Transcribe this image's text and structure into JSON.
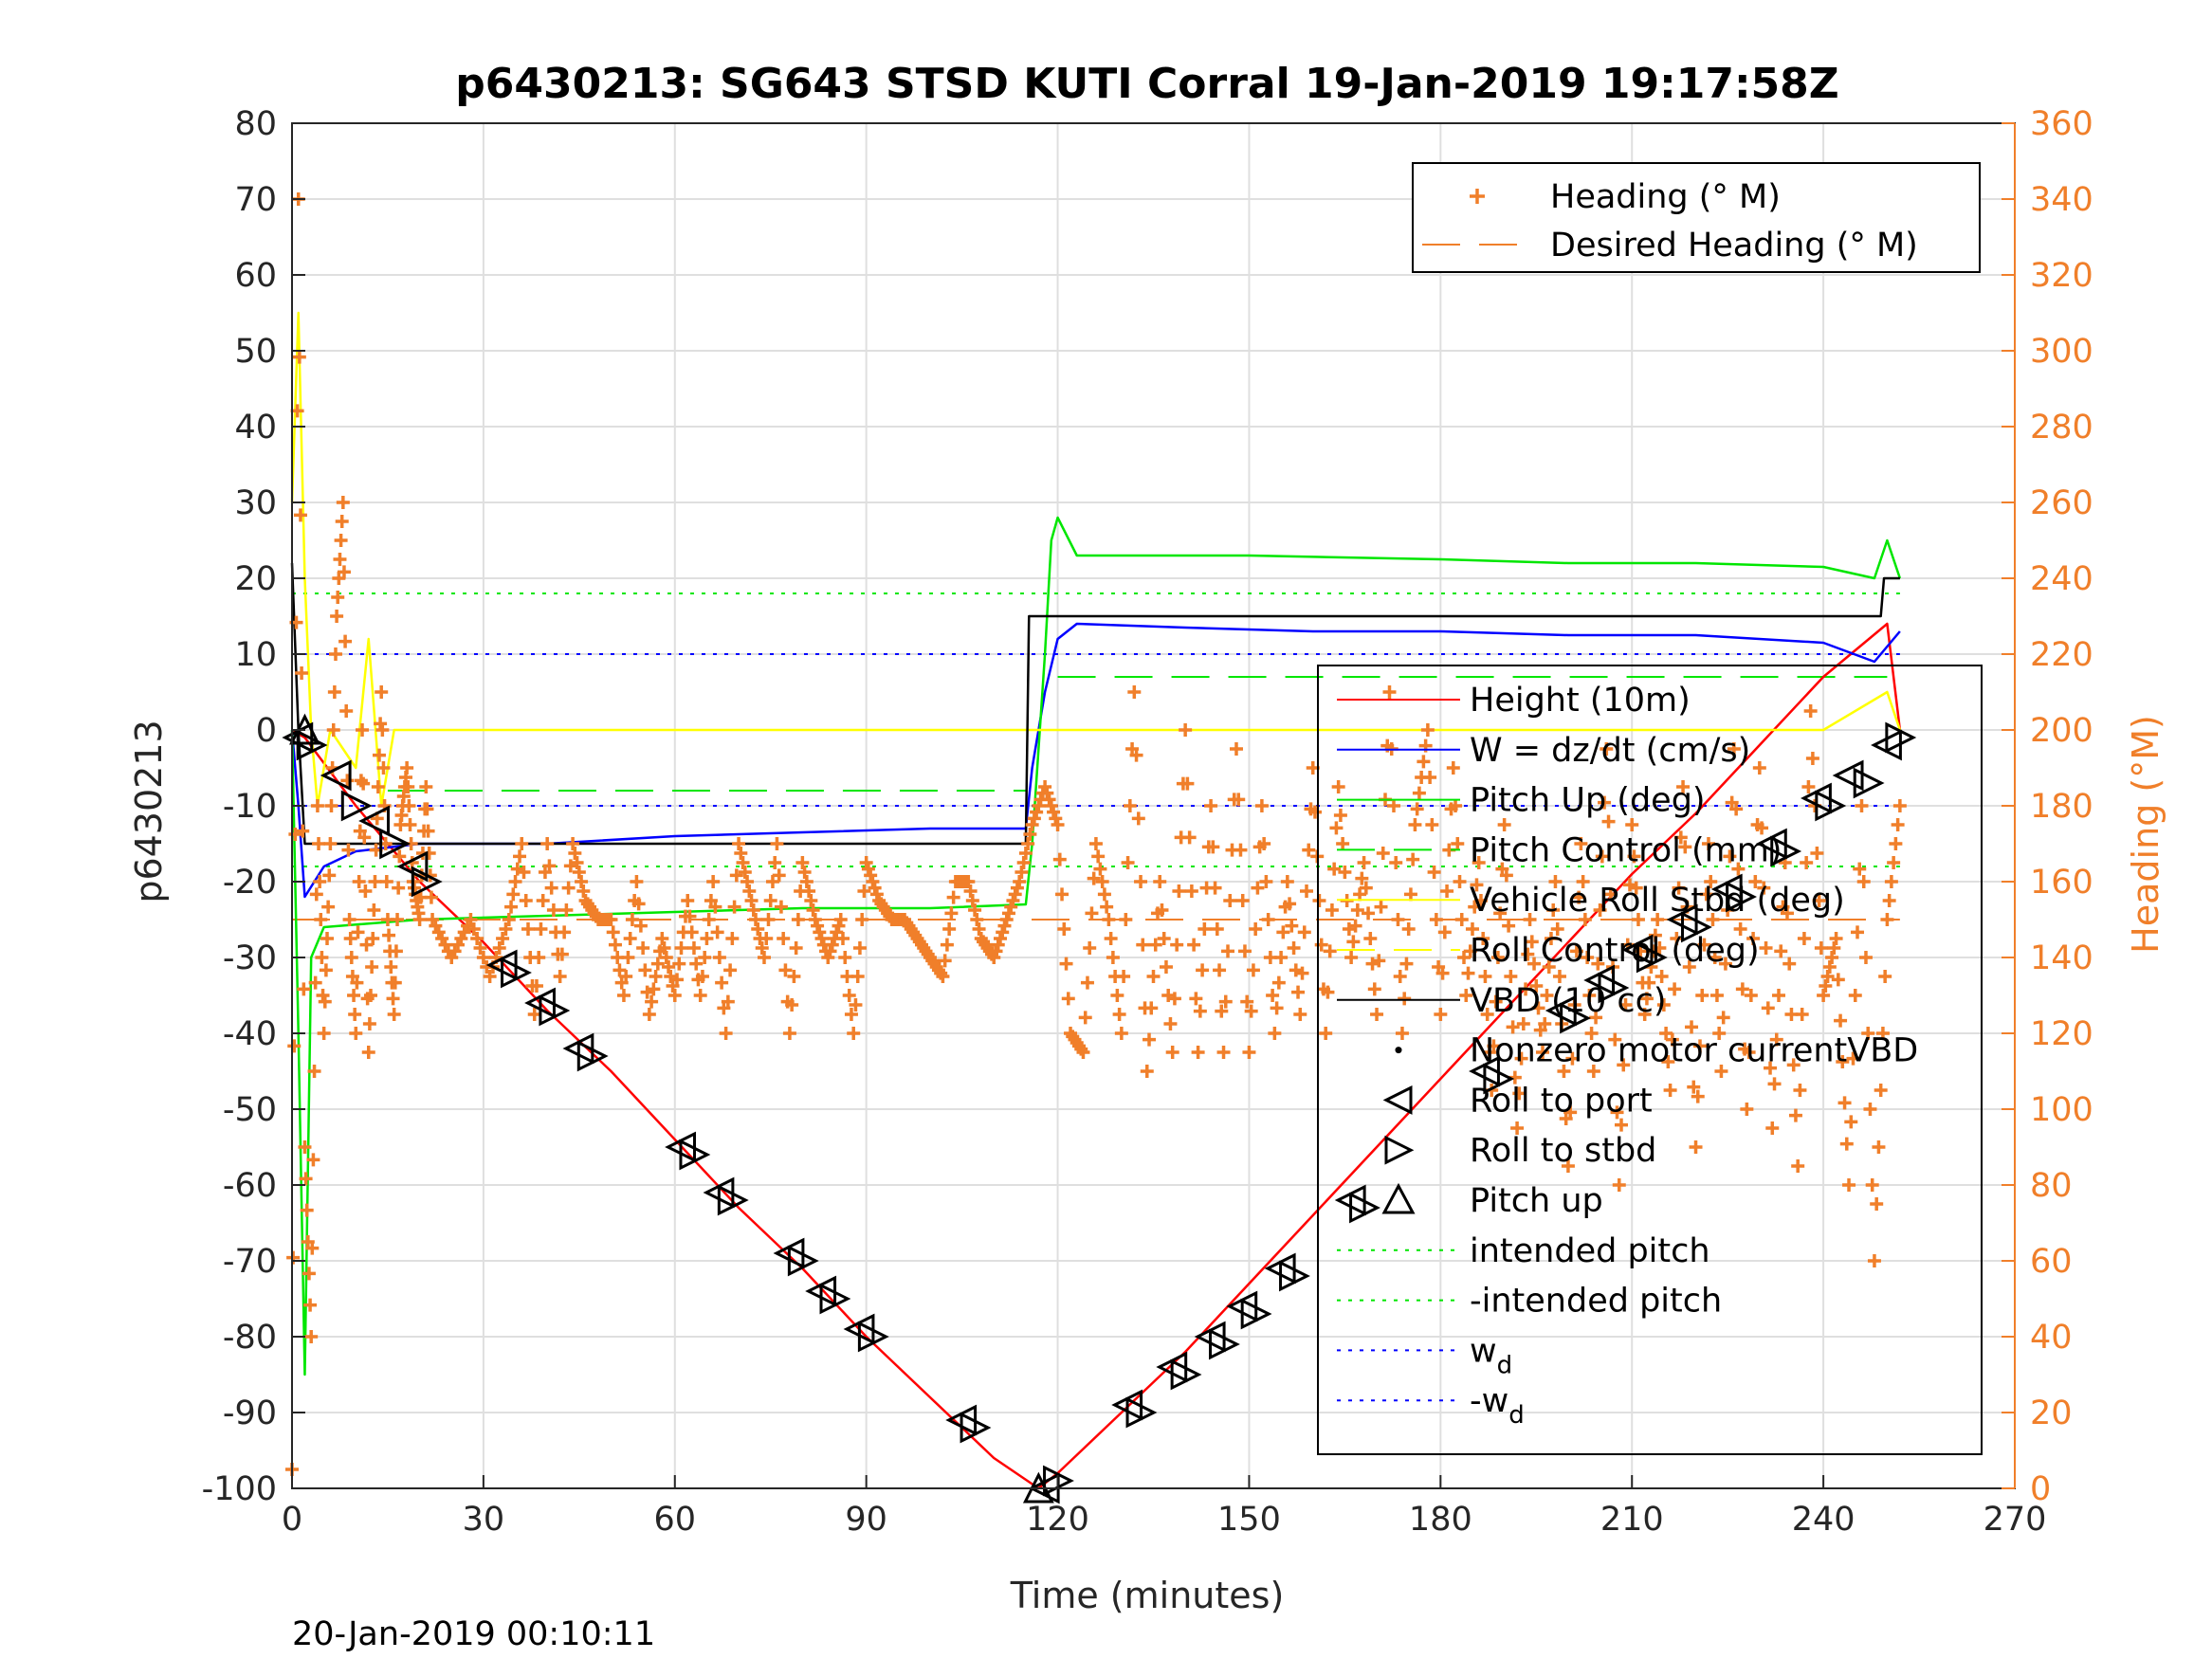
{
  "chart_data": {
    "type": "line",
    "title": "p6430213: SG643 STSD KUTI Corral 19-Jan-2019 19:17:58Z",
    "xlabel": "Time (minutes)",
    "ylabel": "p6430213",
    "ylabel_right": "Heading (°M)",
    "footer": "20-Jan-2019 00:10:11",
    "xlim": [
      0,
      270
    ],
    "ylim": [
      -100,
      80
    ],
    "ylim_right": [
      0,
      360
    ],
    "x_ticks": [
      "0",
      "30",
      "60",
      "90",
      "120",
      "150",
      "180",
      "210",
      "240",
      "270"
    ],
    "y_ticks": [
      "80",
      "70",
      "60",
      "50",
      "40",
      "30",
      "20",
      "10",
      "0",
      "-10",
      "-20",
      "-30",
      "-40",
      "-50",
      "-60",
      "-70",
      "-80",
      "-90",
      "-100"
    ],
    "y_ticks_right": [
      "360",
      "340",
      "320",
      "300",
      "280",
      "260",
      "240",
      "220",
      "200",
      "180",
      "160",
      "140",
      "120",
      "100",
      "80",
      "60",
      "40",
      "20",
      "0"
    ],
    "grid": true,
    "colors": {
      "height": "#ff0000",
      "w": "#0000ff",
      "pitch": "#00e600",
      "roll": "#ffff00",
      "vbd": "#000000",
      "heading": "#f07f2a",
      "marker": "#000000"
    },
    "legend_heading": [
      {
        "label": "Heading (° M)",
        "style": "plus",
        "color": "#f07f2a"
      },
      {
        "label": "Desired Heading (° M)",
        "style": "dash",
        "color": "#f07f2a"
      }
    ],
    "legend_main": [
      {
        "label": "Height (10m)",
        "style": "line",
        "color": "#ff0000"
      },
      {
        "label": "W = dz/dt (cm/s)",
        "style": "line",
        "color": "#0000ff"
      },
      {
        "label": "Pitch Up (deg)",
        "style": "line",
        "color": "#00e600"
      },
      {
        "label": "Pitch Control (mm)",
        "style": "dash",
        "color": "#00e600"
      },
      {
        "label": "Vehicle Roll Stbd (deg)",
        "style": "line",
        "color": "#ffff00"
      },
      {
        "label": "Roll Control (deg)",
        "style": "dash",
        "color": "#ffff00"
      },
      {
        "label": "VBD (10 cc)",
        "style": "line",
        "color": "#000000"
      },
      {
        "label": "Nonzero motor currentVBD",
        "style": "dot",
        "color": "#000000"
      },
      {
        "label": "Roll to port",
        "style": "tri-left",
        "color": "#000000"
      },
      {
        "label": "Roll to stbd",
        "style": "tri-right",
        "color": "#000000"
      },
      {
        "label": "Pitch up",
        "style": "tri-up",
        "color": "#000000"
      },
      {
        "label": "intended pitch",
        "style": "dot-line",
        "color": "#00e600"
      },
      {
        "label": "-intended pitch",
        "style": "dot-line",
        "color": "#00e600"
      },
      {
        "label": "w",
        "sub": "d",
        "style": "dot-line",
        "color": "#0000ff"
      },
      {
        "label": "-w",
        "sub": "d",
        "style": "dot-line",
        "color": "#0000ff"
      }
    ],
    "series": [
      {
        "name": "Height (10m)",
        "color": "#ff0000",
        "x": [
          0,
          2,
          10,
          20,
          30,
          40,
          50,
          60,
          70,
          80,
          90,
          100,
          110,
          117,
          120,
          130,
          140,
          150,
          160,
          170,
          180,
          190,
          200,
          210,
          220,
          230,
          240,
          250,
          252
        ],
        "y": [
          0,
          -1,
          -10,
          -20,
          -28,
          -37,
          -45,
          -54,
          -63,
          -71,
          -80,
          -88,
          -96,
          -100,
          -98,
          -90,
          -82,
          -73,
          -64,
          -55,
          -46,
          -37,
          -28,
          -19,
          -11,
          -2,
          7,
          14,
          0
        ]
      },
      {
        "name": "W = dz/dt (cm/s)",
        "color": "#0000ff",
        "x": [
          0,
          1,
          2,
          5,
          10,
          20,
          40,
          60,
          80,
          100,
          115,
          116,
          118,
          120,
          123,
          140,
          160,
          180,
          200,
          220,
          240,
          248,
          252
        ],
        "y": [
          0,
          -10,
          -22,
          -18,
          -16,
          -15,
          -15,
          -14,
          -13.5,
          -13,
          -13,
          -5,
          5,
          12,
          14,
          13.5,
          13,
          13,
          12.5,
          12.5,
          11.5,
          9,
          13
        ]
      },
      {
        "name": "Pitch Up (deg)",
        "color": "#00e600",
        "x": [
          0,
          1,
          2,
          3,
          5,
          20,
          40,
          60,
          80,
          100,
          115,
          116,
          118,
          119,
          120,
          123,
          150,
          180,
          200,
          220,
          240,
          248,
          250,
          252
        ],
        "y": [
          0,
          -40,
          -85,
          -30,
          -26,
          -25,
          -24.5,
          -24,
          -23.5,
          -23.5,
          -23,
          -15,
          10,
          25,
          28,
          23,
          23,
          22.5,
          22,
          22,
          21.5,
          20,
          25,
          20
        ]
      },
      {
        "name": "Vehicle Roll Stbd (deg)",
        "color": "#ffff00",
        "x": [
          0,
          1,
          2,
          3,
          4,
          6,
          10,
          12,
          14,
          16,
          20,
          40,
          60,
          80,
          100,
          115,
          117,
          120,
          140,
          160,
          180,
          200,
          220,
          240,
          250,
          252
        ],
        "y": [
          30,
          55,
          20,
          0,
          -10,
          0,
          -5,
          12,
          -10,
          0,
          0,
          0,
          0,
          0,
          0,
          0,
          0,
          0,
          0,
          0,
          0,
          0,
          0,
          0,
          5,
          0
        ]
      },
      {
        "name": "VBD (10 cc)",
        "color": "#000000",
        "x": [
          0,
          1,
          2,
          20,
          40,
          60,
          80,
          100,
          115,
          115.5,
          160,
          200,
          220,
          249,
          249.5,
          252
        ],
        "y": [
          22,
          0,
          -15,
          -15,
          -15,
          -15,
          -15,
          -15,
          -15,
          15,
          15,
          15,
          15,
          15,
          20,
          20
        ]
      }
    ],
    "reference_lines": [
      {
        "name": "intended pitch",
        "y": 18,
        "color": "#00e600",
        "dash": "4,8"
      },
      {
        "name": "-intended pitch",
        "y": -18,
        "color": "#00e600",
        "dash": "4,8"
      },
      {
        "name": "w_d",
        "y": 10,
        "color": "#0000ff",
        "dash": "4,8"
      },
      {
        "name": "-w_d",
        "y": -10,
        "color": "#0000ff",
        "dash": "4,8"
      },
      {
        "name": "Pitch Control (mm) dive",
        "y": -8,
        "x": [
          15,
          115
        ],
        "color": "#00e600",
        "dash": "40,20"
      },
      {
        "name": "Pitch Control (mm) climb",
        "y": 7,
        "x": [
          120,
          250
        ],
        "color": "#00e600",
        "dash": "40,20"
      },
      {
        "name": "Desired Heading (° M)",
        "y2": 150,
        "x": [
          0,
          252
        ],
        "color": "#f07f2a",
        "dash": "40,20"
      }
    ],
    "heading": {
      "name": "Heading (° M)",
      "color": "#f07f2a",
      "x": [
        0,
        1,
        2,
        3,
        4,
        5,
        6,
        7,
        8,
        9,
        10,
        11,
        12,
        13,
        14,
        15,
        16,
        17,
        18,
        19,
        20,
        21,
        22,
        25,
        28,
        31,
        34,
        36,
        38,
        40,
        42,
        44,
        46,
        48,
        50,
        52,
        54,
        56,
        58,
        60,
        62,
        64,
        66,
        68,
        70,
        72,
        74,
        76,
        78,
        80,
        82,
        84,
        86,
        88,
        90,
        92,
        94,
        96,
        98,
        100,
        102,
        104,
        106,
        108,
        110,
        112,
        114,
        116,
        118,
        120,
        122,
        124,
        126,
        128,
        130,
        132,
        134,
        136,
        138,
        140,
        142,
        144,
        146,
        148,
        150,
        152,
        154,
        156,
        158,
        160,
        162,
        164,
        166,
        168,
        170,
        172,
        174,
        176,
        178,
        180,
        182,
        184,
        186,
        188,
        190,
        192,
        194,
        196,
        198,
        200,
        202,
        204,
        206,
        208,
        210,
        212,
        214,
        216,
        218,
        220,
        222,
        224,
        226,
        228,
        230,
        232,
        234,
        236,
        238,
        240,
        242,
        244,
        246,
        248,
        250,
        252
      ],
      "y": [
        5,
        340,
        90,
        40,
        180,
        120,
        170,
        230,
        260,
        150,
        120,
        200,
        115,
        160,
        210,
        150,
        125,
        175,
        190,
        160,
        150,
        185,
        150,
        140,
        150,
        135,
        150,
        170,
        125,
        170,
        135,
        170,
        155,
        150,
        150,
        130,
        160,
        125,
        145,
        130,
        155,
        130,
        160,
        120,
        170,
        155,
        140,
        170,
        120,
        165,
        150,
        140,
        150,
        120,
        165,
        155,
        150,
        150,
        145,
        140,
        135,
        160,
        160,
        145,
        140,
        150,
        160,
        175,
        185,
        175,
        120,
        115,
        170,
        150,
        120,
        210,
        110,
        160,
        115,
        200,
        115,
        180,
        115,
        195,
        115,
        180,
        120,
        160,
        125,
        190,
        120,
        185,
        140,
        165,
        125,
        210,
        120,
        175,
        200,
        125,
        190,
        130,
        165,
        105,
        175,
        95,
        150,
        115,
        160,
        85,
        170,
        110,
        195,
        80,
        175,
        125,
        150,
        105,
        185,
        90,
        170,
        110,
        195,
        100,
        190,
        95,
        165,
        85,
        205,
        130,
        145,
        80,
        180,
        60,
        150,
        180
      ]
    },
    "markers": {
      "roll_port": {
        "x": [
          1,
          7,
          13,
          19,
          33,
          39,
          45,
          61,
          67,
          78,
          83,
          89,
          105,
          118,
          131,
          138,
          144,
          149,
          155,
          166,
          187,
          199,
          205,
          211,
          218,
          225,
          232,
          239,
          244,
          250
        ],
        "y": [
          -1,
          -6,
          -12,
          -18,
          -31,
          -36,
          -42,
          -55,
          -61,
          -69,
          -74,
          -79,
          -91,
          -100,
          -89,
          -84,
          -80,
          -76,
          -71,
          -62,
          -45,
          -37,
          -33,
          -29,
          -25,
          -21,
          -15,
          -9,
          -6,
          -2
        ]
      },
      "roll_stbd": {
        "x": [
          3,
          10,
          16,
          21,
          35,
          41,
          47,
          63,
          69,
          80,
          85,
          91,
          107,
          120,
          133,
          140,
          146,
          151,
          157,
          168,
          189,
          201,
          207,
          213,
          220,
          227,
          234,
          241,
          247,
          252
        ],
        "y": [
          -2,
          -10,
          -15,
          -20,
          -32,
          -37,
          -43,
          -56,
          -62,
          -70,
          -75,
          -80,
          -92,
          -99,
          -90,
          -85,
          -81,
          -77,
          -72,
          -63,
          -46,
          -38,
          -34,
          -30,
          -26,
          -22,
          -16,
          -10,
          -7,
          -1
        ]
      },
      "pitch_up": {
        "x": [
          2,
          117
        ],
        "y": [
          0,
          -100
        ]
      }
    }
  }
}
